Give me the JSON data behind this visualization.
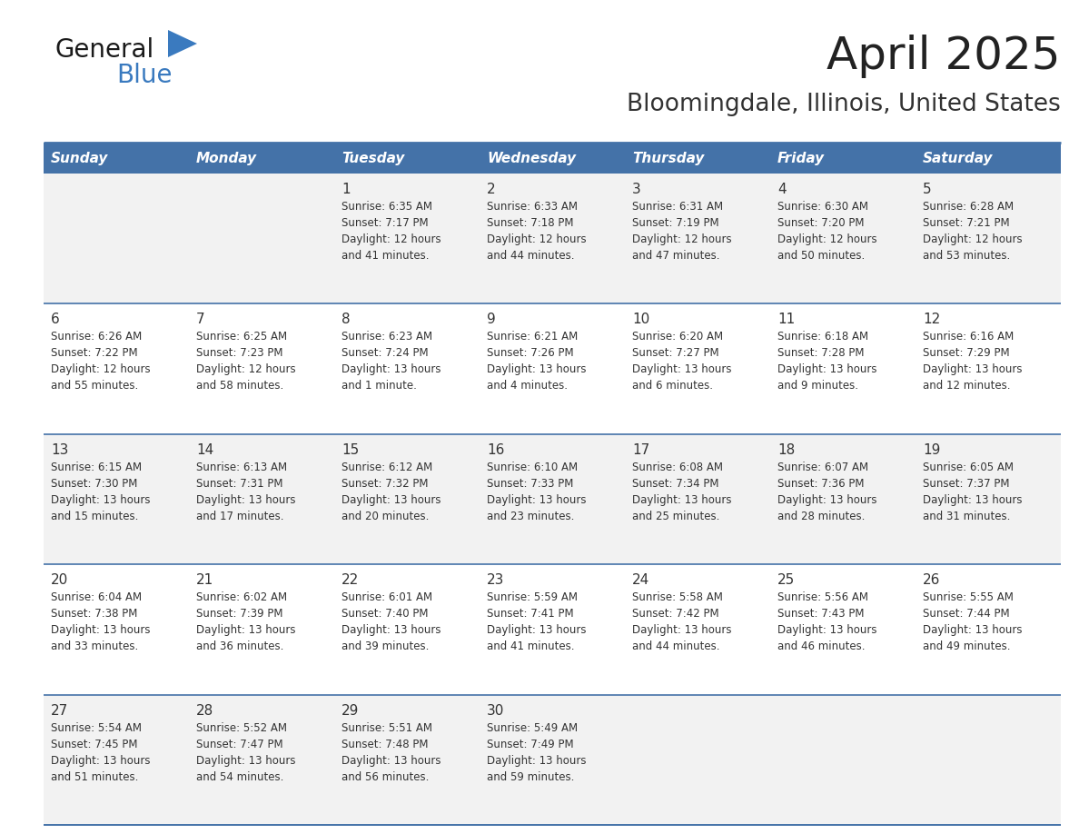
{
  "title": "April 2025",
  "subtitle": "Bloomingdale, Illinois, United States",
  "header_color": "#4472a8",
  "header_text_color": "#ffffff",
  "cell_bg_even": "#f2f2f2",
  "cell_bg_odd": "#ffffff",
  "border_color": "#4472a8",
  "text_color": "#333333",
  "day_headers": [
    "Sunday",
    "Monday",
    "Tuesday",
    "Wednesday",
    "Thursday",
    "Friday",
    "Saturday"
  ],
  "title_color": "#222222",
  "subtitle_color": "#333333",
  "logo_general_color": "#1a1a1a",
  "logo_blue_color": "#3a7abf",
  "logo_triangle_color": "#3a7abf",
  "days": [
    {
      "day": null,
      "sunrise": null,
      "sunset": null,
      "daylight": null
    },
    {
      "day": null,
      "sunrise": null,
      "sunset": null,
      "daylight": null
    },
    {
      "day": 1,
      "sunrise": "6:35 AM",
      "sunset": "7:17 PM",
      "daylight": "12 hours\nand 41 minutes."
    },
    {
      "day": 2,
      "sunrise": "6:33 AM",
      "sunset": "7:18 PM",
      "daylight": "12 hours\nand 44 minutes."
    },
    {
      "day": 3,
      "sunrise": "6:31 AM",
      "sunset": "7:19 PM",
      "daylight": "12 hours\nand 47 minutes."
    },
    {
      "day": 4,
      "sunrise": "6:30 AM",
      "sunset": "7:20 PM",
      "daylight": "12 hours\nand 50 minutes."
    },
    {
      "day": 5,
      "sunrise": "6:28 AM",
      "sunset": "7:21 PM",
      "daylight": "12 hours\nand 53 minutes."
    },
    {
      "day": 6,
      "sunrise": "6:26 AM",
      "sunset": "7:22 PM",
      "daylight": "12 hours\nand 55 minutes."
    },
    {
      "day": 7,
      "sunrise": "6:25 AM",
      "sunset": "7:23 PM",
      "daylight": "12 hours\nand 58 minutes."
    },
    {
      "day": 8,
      "sunrise": "6:23 AM",
      "sunset": "7:24 PM",
      "daylight": "13 hours\nand 1 minute."
    },
    {
      "day": 9,
      "sunrise": "6:21 AM",
      "sunset": "7:26 PM",
      "daylight": "13 hours\nand 4 minutes."
    },
    {
      "day": 10,
      "sunrise": "6:20 AM",
      "sunset": "7:27 PM",
      "daylight": "13 hours\nand 6 minutes."
    },
    {
      "day": 11,
      "sunrise": "6:18 AM",
      "sunset": "7:28 PM",
      "daylight": "13 hours\nand 9 minutes."
    },
    {
      "day": 12,
      "sunrise": "6:16 AM",
      "sunset": "7:29 PM",
      "daylight": "13 hours\nand 12 minutes."
    },
    {
      "day": 13,
      "sunrise": "6:15 AM",
      "sunset": "7:30 PM",
      "daylight": "13 hours\nand 15 minutes."
    },
    {
      "day": 14,
      "sunrise": "6:13 AM",
      "sunset": "7:31 PM",
      "daylight": "13 hours\nand 17 minutes."
    },
    {
      "day": 15,
      "sunrise": "6:12 AM",
      "sunset": "7:32 PM",
      "daylight": "13 hours\nand 20 minutes."
    },
    {
      "day": 16,
      "sunrise": "6:10 AM",
      "sunset": "7:33 PM",
      "daylight": "13 hours\nand 23 minutes."
    },
    {
      "day": 17,
      "sunrise": "6:08 AM",
      "sunset": "7:34 PM",
      "daylight": "13 hours\nand 25 minutes."
    },
    {
      "day": 18,
      "sunrise": "6:07 AM",
      "sunset": "7:36 PM",
      "daylight": "13 hours\nand 28 minutes."
    },
    {
      "day": 19,
      "sunrise": "6:05 AM",
      "sunset": "7:37 PM",
      "daylight": "13 hours\nand 31 minutes."
    },
    {
      "day": 20,
      "sunrise": "6:04 AM",
      "sunset": "7:38 PM",
      "daylight": "13 hours\nand 33 minutes."
    },
    {
      "day": 21,
      "sunrise": "6:02 AM",
      "sunset": "7:39 PM",
      "daylight": "13 hours\nand 36 minutes."
    },
    {
      "day": 22,
      "sunrise": "6:01 AM",
      "sunset": "7:40 PM",
      "daylight": "13 hours\nand 39 minutes."
    },
    {
      "day": 23,
      "sunrise": "5:59 AM",
      "sunset": "7:41 PM",
      "daylight": "13 hours\nand 41 minutes."
    },
    {
      "day": 24,
      "sunrise": "5:58 AM",
      "sunset": "7:42 PM",
      "daylight": "13 hours\nand 44 minutes."
    },
    {
      "day": 25,
      "sunrise": "5:56 AM",
      "sunset": "7:43 PM",
      "daylight": "13 hours\nand 46 minutes."
    },
    {
      "day": 26,
      "sunrise": "5:55 AM",
      "sunset": "7:44 PM",
      "daylight": "13 hours\nand 49 minutes."
    },
    {
      "day": 27,
      "sunrise": "5:54 AM",
      "sunset": "7:45 PM",
      "daylight": "13 hours\nand 51 minutes."
    },
    {
      "day": 28,
      "sunrise": "5:52 AM",
      "sunset": "7:47 PM",
      "daylight": "13 hours\nand 54 minutes."
    },
    {
      "day": 29,
      "sunrise": "5:51 AM",
      "sunset": "7:48 PM",
      "daylight": "13 hours\nand 56 minutes."
    },
    {
      "day": 30,
      "sunrise": "5:49 AM",
      "sunset": "7:49 PM",
      "daylight": "13 hours\nand 59 minutes."
    },
    {
      "day": null,
      "sunrise": null,
      "sunset": null,
      "daylight": null
    },
    {
      "day": null,
      "sunrise": null,
      "sunset": null,
      "daylight": null
    },
    {
      "day": null,
      "sunrise": null,
      "sunset": null,
      "daylight": null
    },
    {
      "day": null,
      "sunrise": null,
      "sunset": null,
      "daylight": null
    }
  ]
}
